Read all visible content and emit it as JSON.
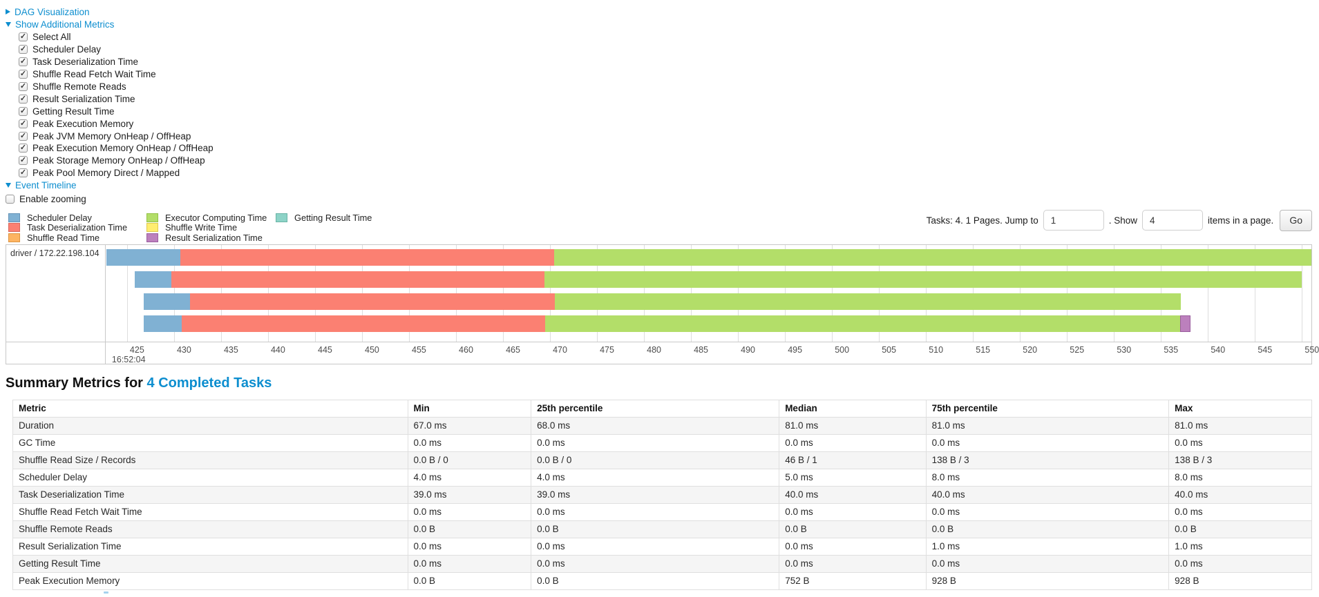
{
  "ui_colors": {
    "link_blue": "#0d8ecf",
    "table_stripe": "#f5f5f5",
    "chart_border": "#c8c8c8",
    "gridline": "#dddddd"
  },
  "toggles": {
    "dag": {
      "label": "DAG Visualization",
      "state": "collapsed"
    },
    "metrics": {
      "label": "Show Additional Metrics",
      "state": "expanded"
    },
    "timeline": {
      "label": "Event Timeline",
      "state": "expanded"
    }
  },
  "metrics_menu": {
    "items": [
      {
        "label": "Select All",
        "checked": true
      },
      {
        "label": "Scheduler Delay",
        "checked": true
      },
      {
        "label": "Task Deserialization Time",
        "checked": true
      },
      {
        "label": "Shuffle Read Fetch Wait Time",
        "checked": true
      },
      {
        "label": "Shuffle Remote Reads",
        "checked": true
      },
      {
        "label": "Result Serialization Time",
        "checked": true
      },
      {
        "label": "Getting Result Time",
        "checked": true
      },
      {
        "label": "Peak Execution Memory",
        "checked": true
      },
      {
        "label": "Peak JVM Memory OnHeap / OffHeap",
        "checked": true
      },
      {
        "label": "Peak Execution Memory OnHeap / OffHeap",
        "checked": true
      },
      {
        "label": "Peak Storage Memory OnHeap / OffHeap",
        "checked": true
      },
      {
        "label": "Peak Pool Memory Direct / Mapped",
        "checked": true
      }
    ]
  },
  "enable_zooming": {
    "label": "Enable zooming",
    "checked": false
  },
  "legend": {
    "columns": [
      [
        {
          "label": "Scheduler Delay",
          "color": "#80B1D3",
          "border": "#6493b8"
        },
        {
          "label": "Task Deserialization Time",
          "color": "#FB8072",
          "border": "#d9685c"
        },
        {
          "label": "Shuffle Read Time",
          "color": "#FDB462",
          "border": "#dd9440"
        }
      ],
      [
        {
          "label": "Executor Computing Time",
          "color": "#B3DE69",
          "border": "#93c144"
        },
        {
          "label": "Shuffle Write Time",
          "color": "#FFED6F",
          "border": "#ddc94d"
        },
        {
          "label": "Result Serialization Time",
          "color": "#BC80BD",
          "border": "#9a5d9e"
        }
      ],
      [
        {
          "label": "Getting Result Time",
          "color": "#8DD3C7",
          "border": "#68b3a5"
        }
      ]
    ]
  },
  "pagination": {
    "prefix": "Tasks: 4. 1 Pages. Jump to",
    "jump_value": "1",
    "middle": ". Show",
    "show_value": "4",
    "suffix": "items in a page.",
    "go_label": "Go"
  },
  "chart_data": {
    "type": "timeline-gantt",
    "row_label": "driver / 172.22.198.104",
    "axis": {
      "min": 422.8,
      "max": 551.0,
      "tick_start": 425,
      "tick_end": 550,
      "tick_step": 5,
      "time_label": "16:52:04",
      "time_label_tick": 425,
      "unit": "ms within second 16:52:04"
    },
    "colors": {
      "scheduler_delay": "#80B1D3",
      "task_deserialization": "#FB8072",
      "shuffle_read": "#FDB462",
      "executor_computing": "#B3DE69",
      "shuffle_write": "#FFED6F",
      "result_serialization": "#BC80BD",
      "getting_result": "#8DD3C7"
    },
    "tasks": [
      {
        "segments": [
          {
            "kind": "scheduler_delay",
            "start": 422.8,
            "end": 430.7
          },
          {
            "kind": "task_deserialization",
            "start": 430.7,
            "end": 470.4
          },
          {
            "kind": "executor_computing",
            "start": 470.4,
            "end": 551.0
          }
        ]
      },
      {
        "segments": [
          {
            "kind": "scheduler_delay",
            "start": 425.8,
            "end": 429.7
          },
          {
            "kind": "task_deserialization",
            "start": 429.7,
            "end": 469.4
          },
          {
            "kind": "executor_computing",
            "start": 469.4,
            "end": 550.0
          }
        ]
      },
      {
        "segments": [
          {
            "kind": "scheduler_delay",
            "start": 426.8,
            "end": 431.7
          },
          {
            "kind": "task_deserialization",
            "start": 431.7,
            "end": 470.5
          },
          {
            "kind": "executor_computing",
            "start": 470.5,
            "end": 537.1
          }
        ]
      },
      {
        "segments": [
          {
            "kind": "scheduler_delay",
            "start": 426.8,
            "end": 430.8
          },
          {
            "kind": "task_deserialization",
            "start": 430.8,
            "end": 469.5
          },
          {
            "kind": "executor_computing",
            "start": 469.5,
            "end": 537.0
          },
          {
            "kind": "result_serialization",
            "start": 537.0,
            "end": 538.1
          }
        ]
      }
    ]
  },
  "summary": {
    "title_prefix": "Summary Metrics for",
    "title_link": "4 Completed Tasks"
  },
  "summary_table": {
    "headers": [
      "Metric",
      "Min",
      "25th percentile",
      "Median",
      "75th percentile",
      "Max"
    ],
    "rows": [
      [
        "Duration",
        "67.0 ms",
        "68.0 ms",
        "81.0 ms",
        "81.0 ms",
        "81.0 ms"
      ],
      [
        "GC Time",
        "0.0 ms",
        "0.0 ms",
        "0.0 ms",
        "0.0 ms",
        "0.0 ms"
      ],
      [
        "Shuffle Read Size / Records",
        "0.0 B / 0",
        "0.0 B / 0",
        "46 B / 1",
        "138 B / 3",
        "138 B / 3"
      ],
      [
        "Scheduler Delay",
        "4.0 ms",
        "4.0 ms",
        "5.0 ms",
        "8.0 ms",
        "8.0 ms"
      ],
      [
        "Task Deserialization Time",
        "39.0 ms",
        "39.0 ms",
        "40.0 ms",
        "40.0 ms",
        "40.0 ms"
      ],
      [
        "Shuffle Read Fetch Wait Time",
        "0.0 ms",
        "0.0 ms",
        "0.0 ms",
        "0.0 ms",
        "0.0 ms"
      ],
      [
        "Shuffle Remote Reads",
        "0.0 B",
        "0.0 B",
        "0.0 B",
        "0.0 B",
        "0.0 B"
      ],
      [
        "Result Serialization Time",
        "0.0 ms",
        "0.0 ms",
        "0.0 ms",
        "1.0 ms",
        "1.0 ms"
      ],
      [
        "Getting Result Time",
        "0.0 ms",
        "0.0 ms",
        "0.0 ms",
        "0.0 ms",
        "0.0 ms"
      ],
      [
        "Peak Execution Memory",
        "0.0 B",
        "0.0 B",
        "752 B",
        "928 B",
        "928 B"
      ]
    ]
  }
}
